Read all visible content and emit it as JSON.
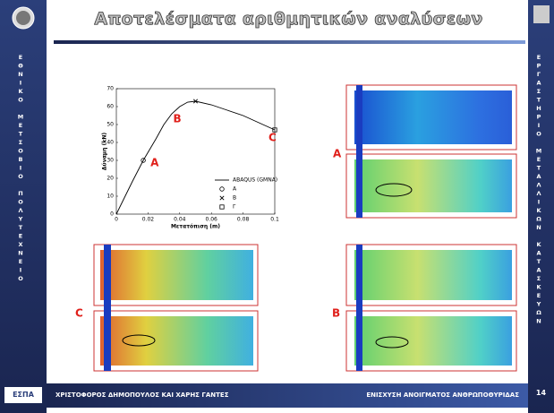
{
  "header": {
    "title": "Αποτελέσματα αριθμητικών αναλύσεων"
  },
  "sidebar_left": {
    "text": "ΕΘΝΙΚΟ ΜΕΤΣΟΒΙΟ ΠΟΛΥΤΕΧΝΕΙΟ"
  },
  "sidebar_right": {
    "text": "ΕΡΓΑΣΤΗΡΙΟ ΜΕΤΑΛΛΙΚΩΝ ΚΑΤΑΣΚΕΥΩΝ"
  },
  "footer": {
    "authors": "ΧΡΙΣΤΟΦΟΡΟΣ ΔΗΜΟΠΟΥΛΟΣ ΚΑΙ ΧΑΡΗΣ ΓΑΝΤΕΣ",
    "topic": "ΕΝΙΣΧΥΣΗ ΑΝΟΙΓΜΑΤΟΣ ΑΝΘΡΩΠΟΘΥΡΙΔΑΣ",
    "page": "14",
    "logo": "ΕΣΠΑ"
  },
  "contour_labels": [
    "A",
    "C",
    "B"
  ],
  "chart_data": {
    "type": "line",
    "xlabel": "Μετατόπιση (m)",
    "ylabel": "Δύναμη (kN)",
    "xlim": [
      0,
      0.1
    ],
    "xticks": [
      0,
      0.02,
      0.04,
      0.06,
      0.08,
      0.1
    ],
    "ylim": [
      0,
      70
    ],
    "yticks": [
      0,
      10,
      20,
      30,
      40,
      50,
      60,
      70
    ],
    "series": [
      {
        "name": "ABAQUS (GMNA)",
        "color": "#000000",
        "marker": "none",
        "x": [
          0,
          0.005,
          0.01,
          0.017,
          0.025,
          0.03,
          0.035,
          0.04,
          0.045,
          0.05,
          0.06,
          0.07,
          0.08,
          0.09,
          0.1
        ],
        "values": [
          0,
          9,
          18,
          30,
          42,
          50,
          56,
          60,
          62.5,
          63,
          61,
          58,
          55,
          51,
          47
        ]
      },
      {
        "name": "A",
        "color": "#000000",
        "marker": "circle",
        "x": [
          0.017
        ],
        "values": [
          30
        ]
      },
      {
        "name": "B",
        "color": "#000000",
        "marker": "x",
        "x": [
          0.05
        ],
        "values": [
          63
        ]
      },
      {
        "name": "Γ",
        "color": "#000000",
        "marker": "square",
        "x": [
          0.1
        ],
        "values": [
          47
        ]
      }
    ],
    "annotations": [
      "A",
      "B",
      "C"
    ]
  }
}
